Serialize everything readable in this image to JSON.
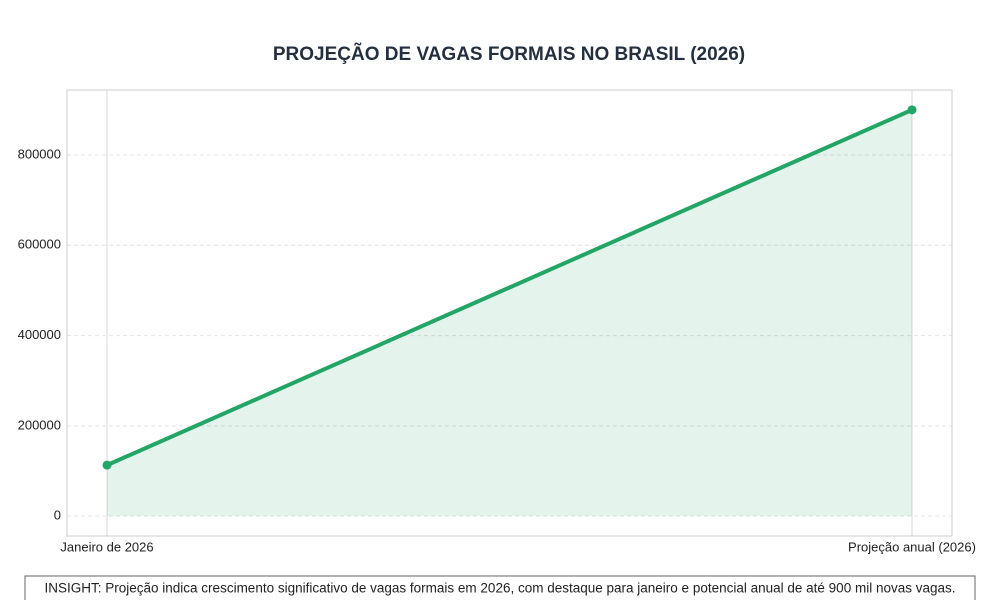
{
  "chart_data": {
    "type": "line",
    "title": "PROJEÇÃO DE VAGAS FORMAIS NO BRASIL (2026)",
    "categories": [
      "Janeiro de 2026",
      "Projeção anual (2026)"
    ],
    "values": [
      113000,
      900000
    ],
    "color": "#22a565",
    "ylim": [
      -44000,
      944000
    ],
    "yticks": [
      0,
      200000,
      400000,
      600000,
      800000
    ],
    "grid": true,
    "annotation": "INSIGHT: Projeção indica crescimento significativo de vagas formais em 2026, com destaque para janeiro e potencial anual de até 900 mil novas vagas."
  }
}
